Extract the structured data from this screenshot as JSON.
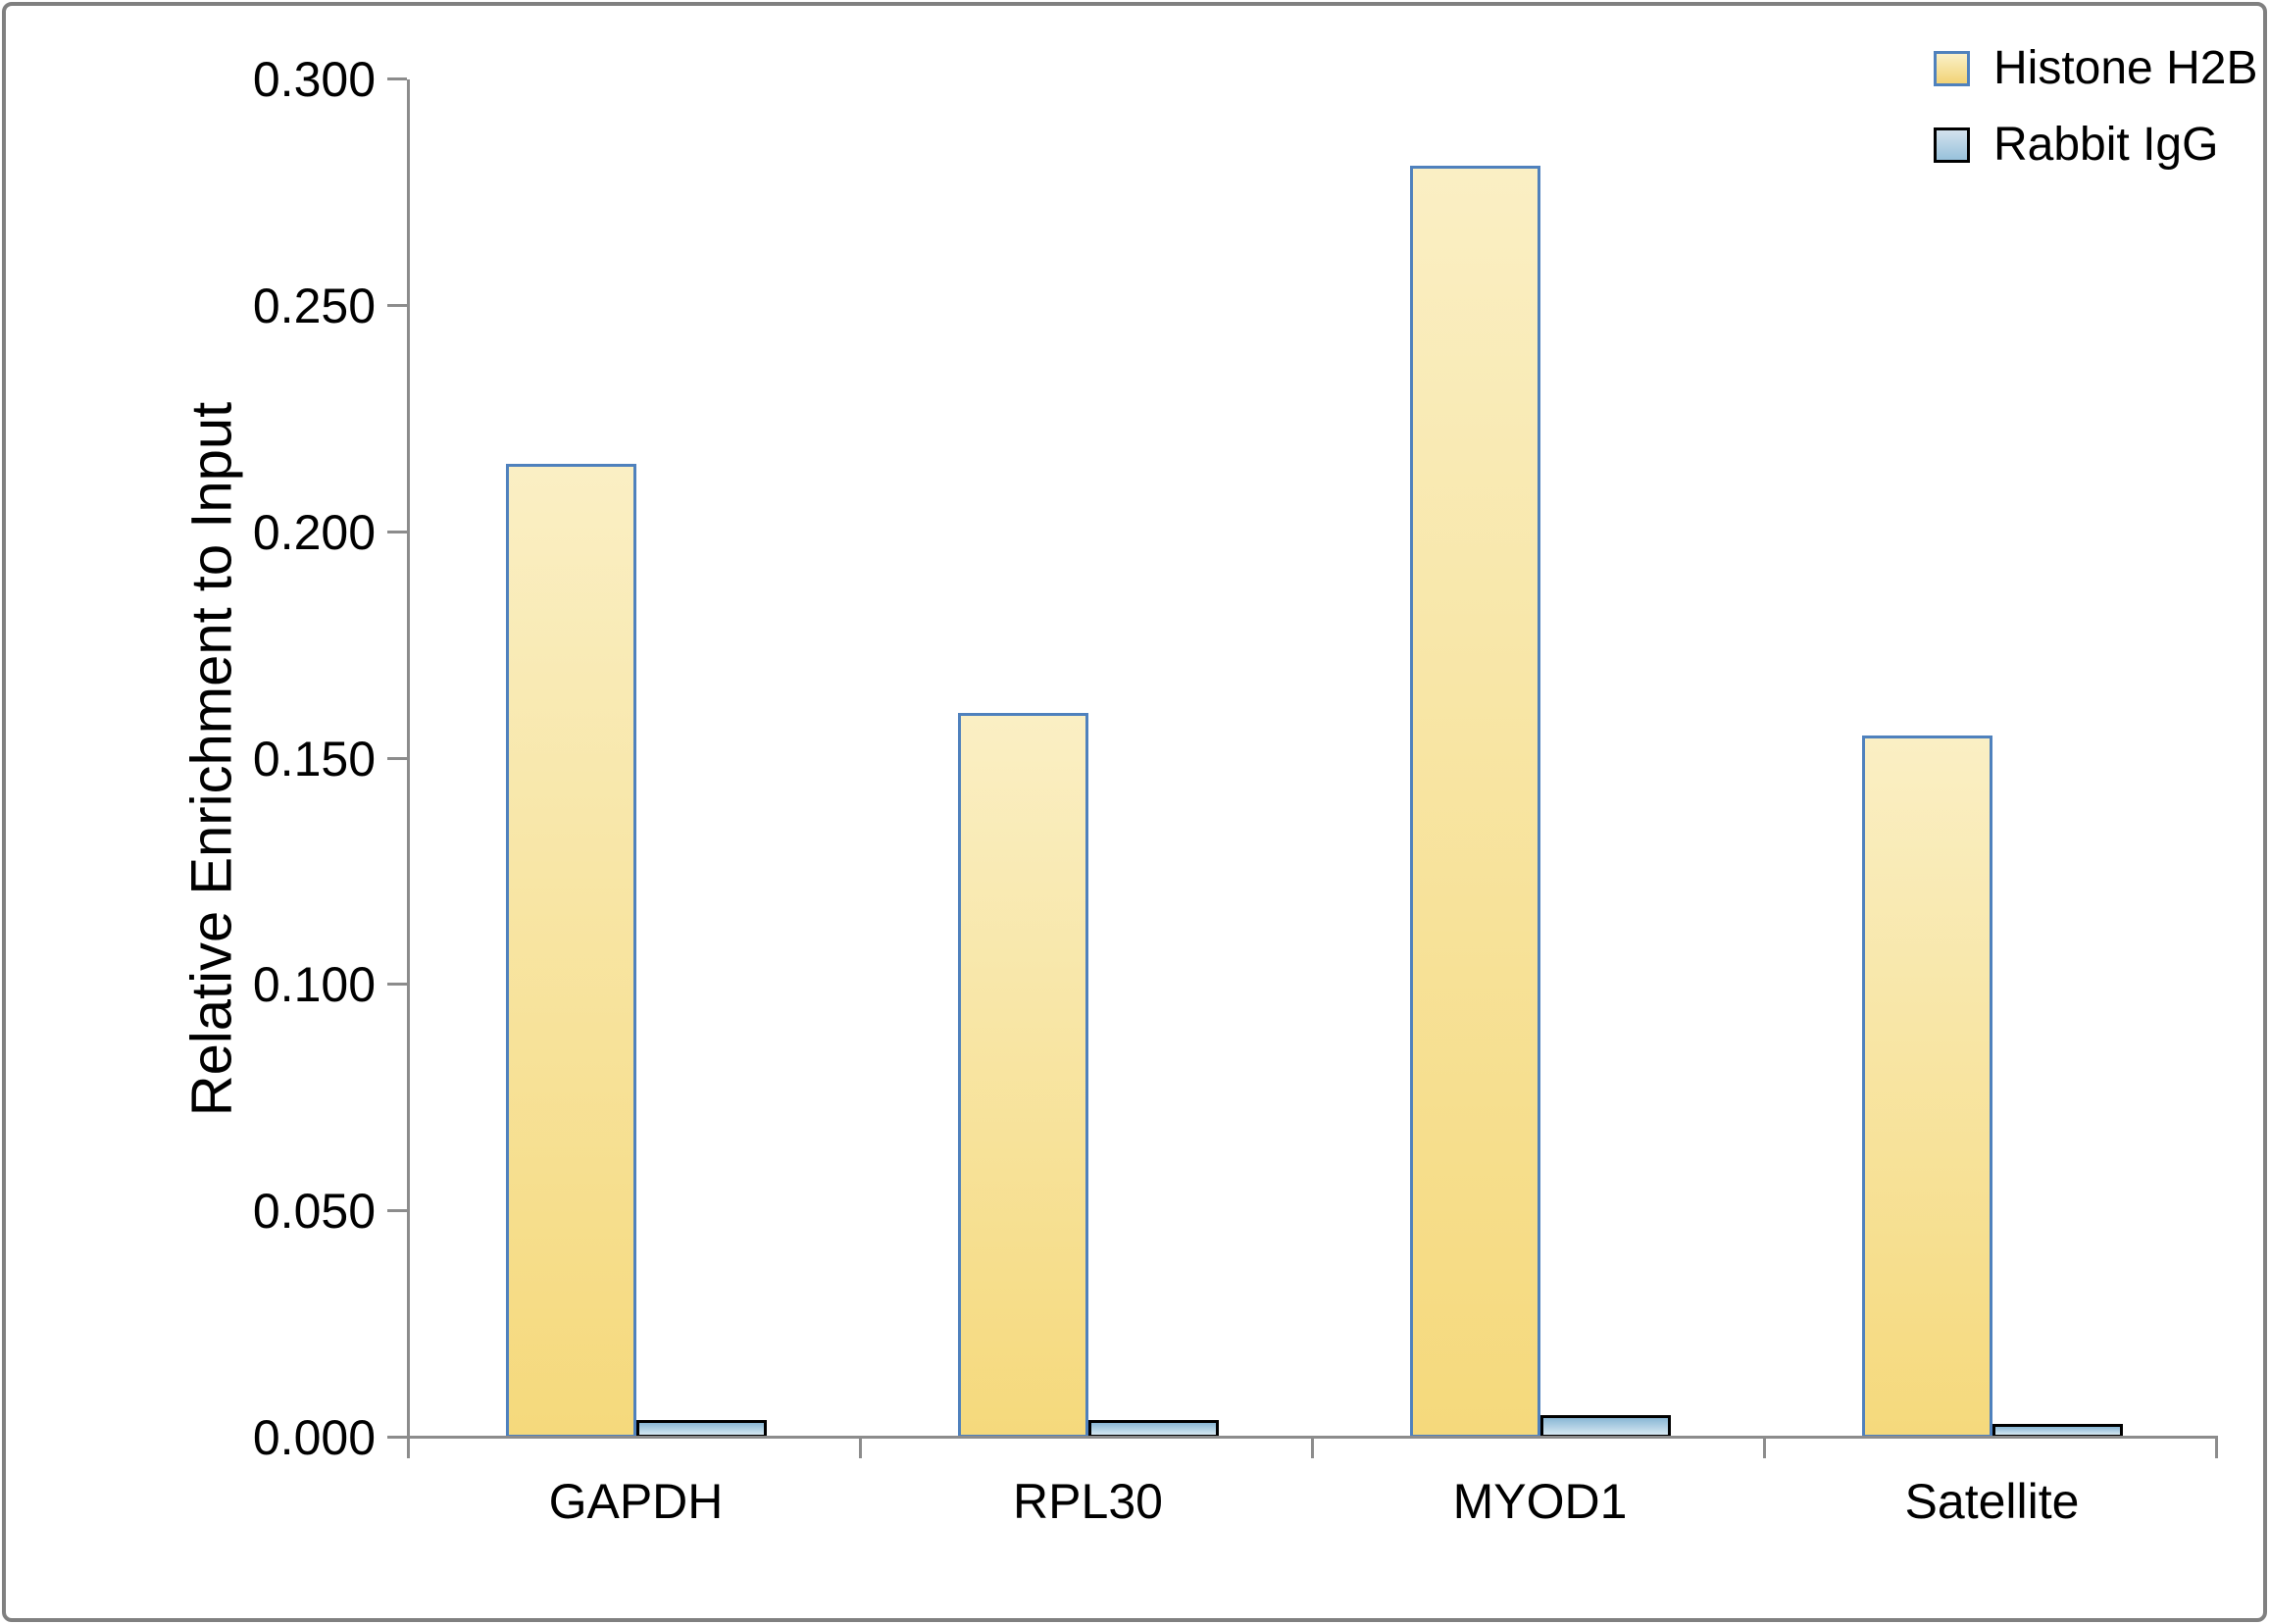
{
  "chart_data": {
    "type": "bar",
    "title": "",
    "categories": [
      "GAPDH",
      "RPL30",
      "MYOD1",
      "Satellite"
    ],
    "series": [
      {
        "name": "Histone H2B",
        "values": [
          0.215,
          0.16,
          0.281,
          0.155
        ],
        "fill_top": "#FAEFC4",
        "fill_bottom": "#F5D97C",
        "border": "#4F81BD"
      },
      {
        "name": "Rabbit IgG",
        "values": [
          0.004,
          0.004,
          0.005,
          0.003
        ],
        "fill_top": "#89B7D5",
        "fill_bottom": "#D6E8F2",
        "border": "#000000"
      }
    ],
    "legend_swatches": [
      {
        "fill_top": "#FAF0C8",
        "fill_bottom": "#F2D376",
        "border": "#4F81BD"
      },
      {
        "fill_top": "#D3E2ED",
        "fill_bottom": "#97C1DB",
        "border": "#000000"
      }
    ],
    "xlabel": "",
    "ylabel": "Relative Enrichment to Input",
    "ylim": [
      0,
      0.3
    ],
    "ytick_step": 0.05,
    "ytick_decimals": 3,
    "grid": false,
    "legend_position": "top-right",
    "axis_color": "#8C8C8C",
    "text_color": "#000000",
    "frame_color": "#808080"
  }
}
